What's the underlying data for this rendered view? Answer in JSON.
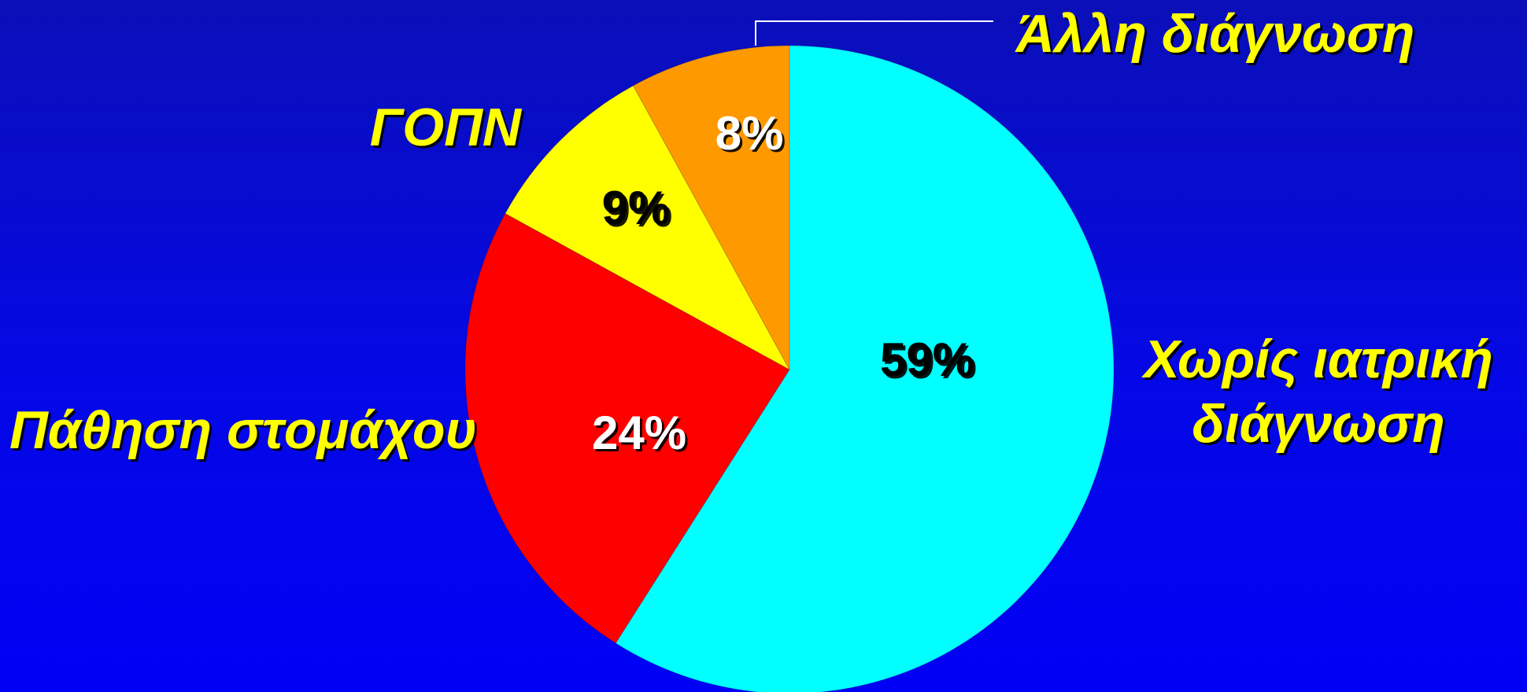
{
  "chart_data": {
    "type": "pie",
    "title": "",
    "start_angle_deg": 0,
    "direction": "clockwise",
    "slices": [
      {
        "name": "Χωρίς ιατρική διάγνωση",
        "name_lines": [
          "Χωρίς ιατρική",
          "διάγνωση"
        ],
        "value": 59,
        "label": "59%",
        "color": "#00ffff",
        "label_color": "#000000"
      },
      {
        "name": "Πάθηση στομάχου",
        "name_lines": [
          "Πάθηση στομάχου"
        ],
        "value": 24,
        "label": "24%",
        "color": "#ff0000",
        "label_color": "#ffffff"
      },
      {
        "name": "ΓΟΠΝ",
        "name_lines": [
          "ΓΟΠΝ"
        ],
        "value": 9,
        "label": "9%",
        "color": "#ffff00",
        "label_color": "#000000"
      },
      {
        "name": "Άλλη διάγνωση",
        "name_lines": [
          "Άλλη διάγνωση"
        ],
        "value": 8,
        "label": "8%",
        "color": "#ff9900",
        "label_color": "#ffffff"
      }
    ],
    "category_label_color": "#ffff00",
    "leader_line_color": "#ffffff"
  }
}
